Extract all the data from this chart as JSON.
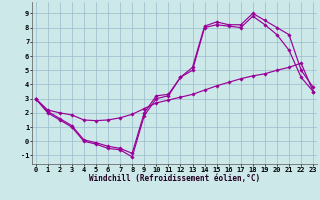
{
  "background_color": "#cce8e8",
  "grid_color": "#99bbcc",
  "line_color": "#990099",
  "xlim": [
    -0.3,
    23.3
  ],
  "ylim": [
    -1.6,
    9.8
  ],
  "xlabel": "Windchill (Refroidissement éolien,°C)",
  "yticks": [
    -1,
    0,
    1,
    2,
    3,
    4,
    5,
    6,
    7,
    8,
    9
  ],
  "xticks": [
    0,
    1,
    2,
    3,
    4,
    5,
    6,
    7,
    8,
    9,
    10,
    11,
    12,
    13,
    14,
    15,
    16,
    17,
    18,
    19,
    20,
    21,
    22,
    23
  ],
  "line1_x": [
    0,
    1,
    2,
    3,
    4,
    5,
    6,
    7,
    8,
    9,
    10,
    11,
    12,
    13,
    14,
    15,
    16,
    17,
    18,
    19,
    20,
    21,
    22,
    23
  ],
  "line1_y": [
    3.0,
    2.0,
    1.5,
    1.0,
    0.0,
    -0.2,
    -0.5,
    -0.6,
    -1.1,
    1.8,
    3.0,
    3.2,
    4.5,
    5.0,
    8.0,
    8.2,
    8.1,
    8.0,
    8.8,
    8.2,
    7.5,
    6.4,
    4.5,
    3.5
  ],
  "line2_x": [
    0,
    1,
    2,
    3,
    4,
    5,
    6,
    7,
    8,
    9,
    10,
    11,
    12,
    13,
    14,
    15,
    16,
    17,
    18,
    19,
    20,
    21,
    22,
    23
  ],
  "line2_y": [
    3.0,
    2.1,
    1.6,
    1.1,
    0.1,
    -0.1,
    -0.35,
    -0.5,
    -0.85,
    2.0,
    3.2,
    3.3,
    4.5,
    5.2,
    8.1,
    8.4,
    8.2,
    8.2,
    9.0,
    8.5,
    8.0,
    7.5,
    5.0,
    3.8
  ],
  "line3_x": [
    0,
    1,
    2,
    3,
    4,
    5,
    6,
    7,
    8,
    9,
    10,
    11,
    12,
    13,
    14,
    15,
    16,
    17,
    18,
    19,
    20,
    21,
    22,
    23
  ],
  "line3_y": [
    3.0,
    2.2,
    2.0,
    1.85,
    1.5,
    1.45,
    1.5,
    1.65,
    1.9,
    2.3,
    2.7,
    2.9,
    3.1,
    3.3,
    3.6,
    3.9,
    4.15,
    4.4,
    4.6,
    4.75,
    5.0,
    5.2,
    5.5,
    3.5
  ],
  "marker": "D",
  "markersize": 1.8,
  "linewidth": 0.85
}
